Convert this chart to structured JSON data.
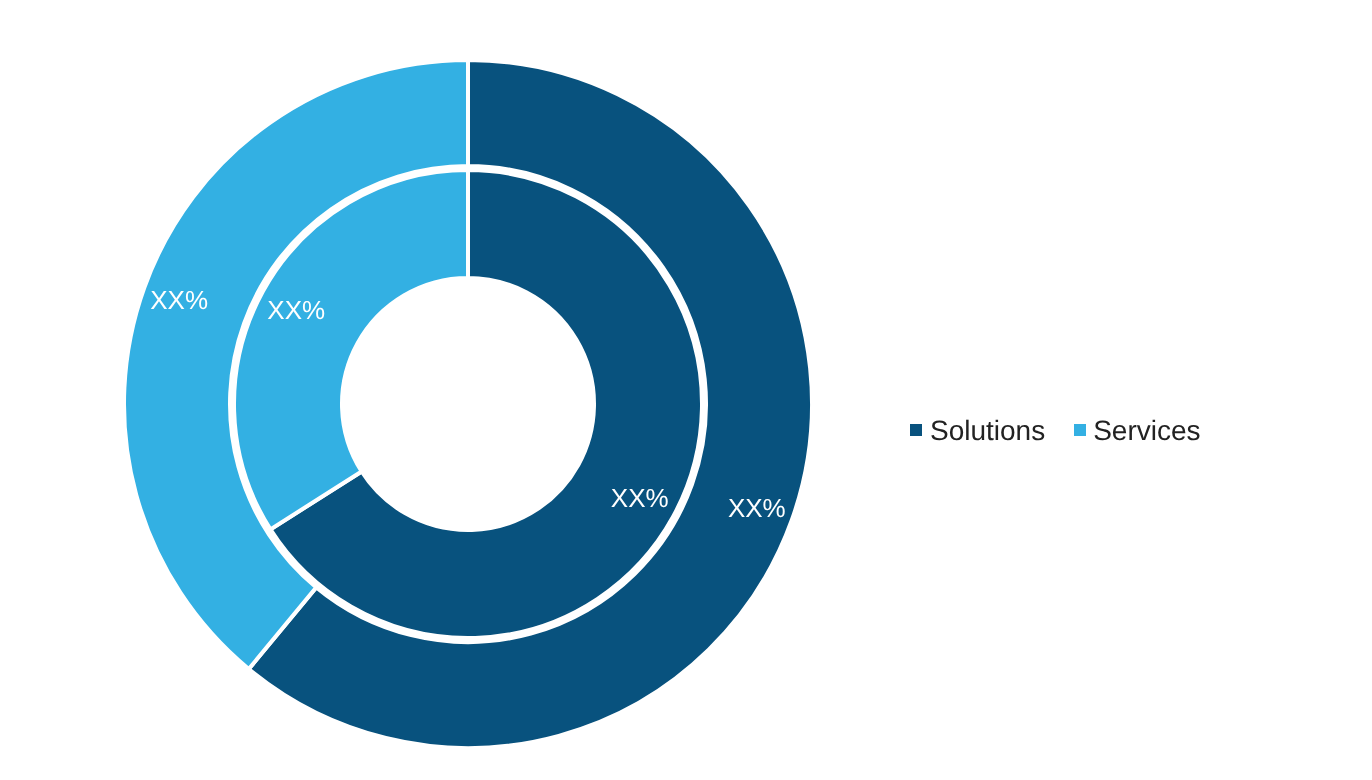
{
  "chart_data": {
    "type": "donut",
    "categories": [
      "Solutions",
      "Services"
    ],
    "colors": [
      "#08527e",
      "#33b0e3"
    ],
    "series": [
      {
        "values": [
          66,
          34
        ],
        "value_labels": [
          "XX%",
          "XX%"
        ]
      },
      {
        "values": [
          61,
          39
        ],
        "value_labels": [
          "XX%",
          "XX%"
        ]
      }
    ],
    "legend": "right"
  }
}
